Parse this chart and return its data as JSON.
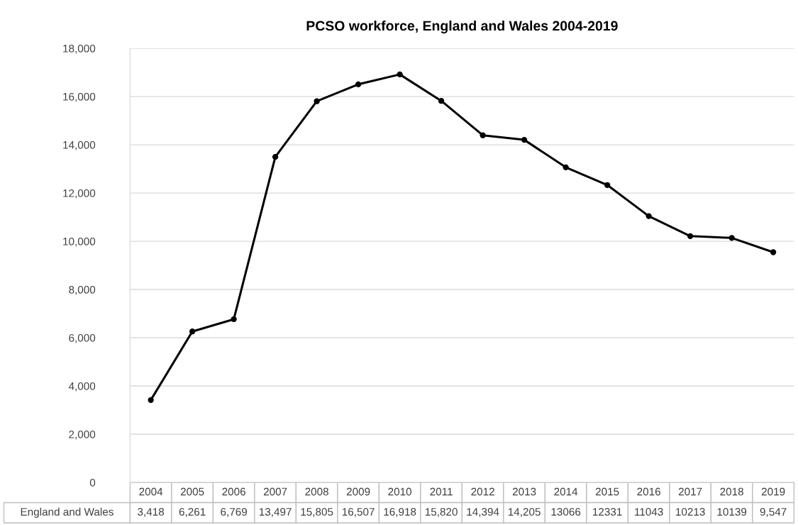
{
  "chart_data": {
    "type": "line",
    "title": "PCSO workforce, England and Wales 2004-2019",
    "categories": [
      "2004",
      "2005",
      "2006",
      "2007",
      "2008",
      "2009",
      "2010",
      "2011",
      "2012",
      "2013",
      "2014",
      "2015",
      "2016",
      "2017",
      "2018",
      "2019"
    ],
    "series": [
      {
        "name": "England and Wales",
        "color": "#000000",
        "values": [
          3418,
          6261,
          6769,
          13497,
          15805,
          16507,
          16918,
          15820,
          14394,
          14205,
          13066,
          12331,
          11043,
          10213,
          10139,
          9547
        ],
        "value_labels": [
          "3,418",
          "6,261",
          "6,769",
          "13,497",
          "15,805",
          "16,507",
          "16,918",
          "15,820",
          "14,394",
          "14,205",
          "13066",
          "12331",
          "11043",
          "10213",
          "10139",
          "9,547"
        ]
      }
    ],
    "ylim": [
      0,
      18000
    ],
    "yticks": [
      0,
      {
        "value": 2000,
        "label": "2,000"
      },
      {
        "value": 4000,
        "label": "4,000"
      },
      {
        "value": 6000,
        "label": "6,000"
      },
      {
        "value": 8000,
        "label": "8,000"
      },
      {
        "value": 10000,
        "label": "10,000"
      },
      {
        "value": 12000,
        "label": "12,000"
      },
      {
        "value": 14000,
        "label": "14,000"
      },
      {
        "value": 16000,
        "label": "16,000"
      },
      {
        "value": 18000,
        "label": "18,000"
      }
    ],
    "grid": "y",
    "legend": false,
    "marker": "circle",
    "line_style": "solid"
  }
}
